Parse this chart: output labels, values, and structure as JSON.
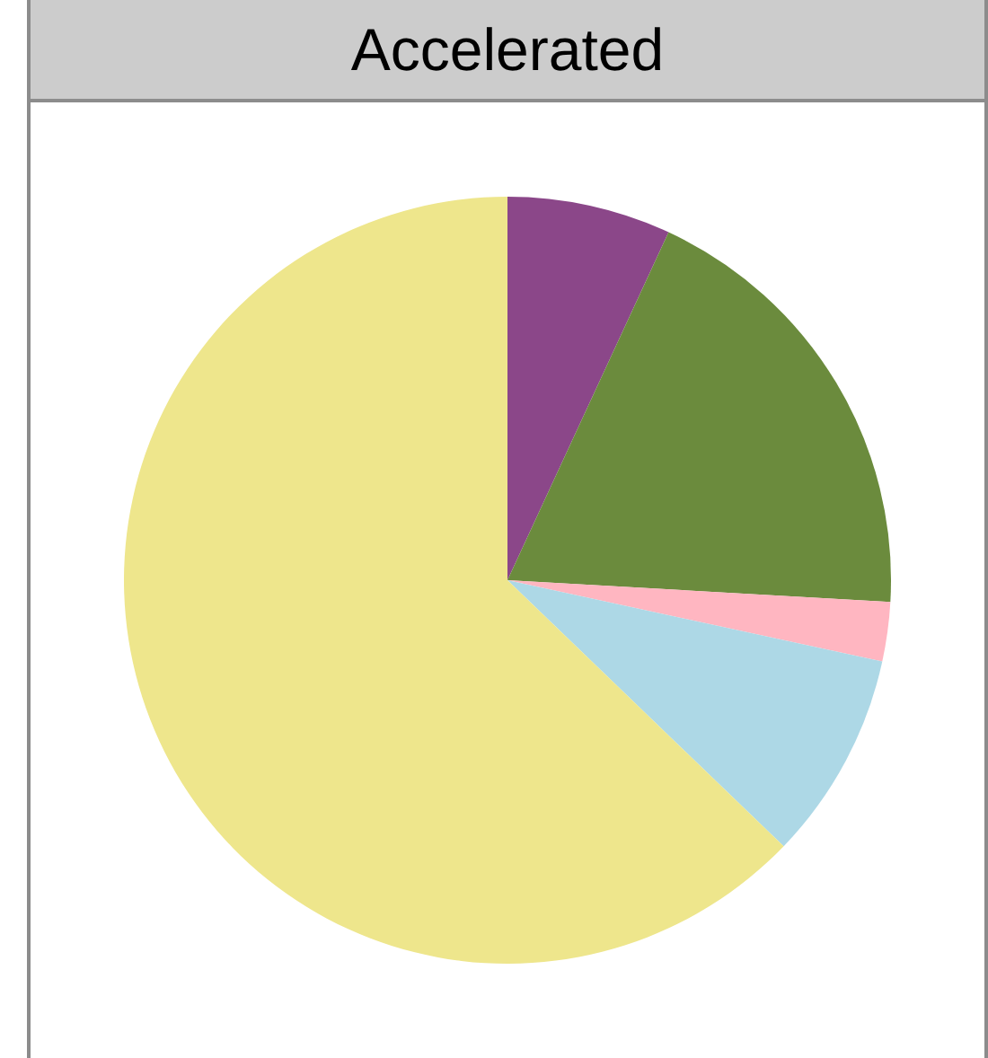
{
  "chart_data": {
    "type": "pie",
    "title": "Accelerated",
    "categories": [
      null,
      null,
      null,
      null,
      null
    ],
    "values": [
      6.9,
      19,
      2.5,
      8.8,
      62.8
    ],
    "colors": [
      "#8b4789",
      "#6b8b3d",
      "#ffb6c1",
      "#add8e6",
      "#eee68c"
    ]
  }
}
